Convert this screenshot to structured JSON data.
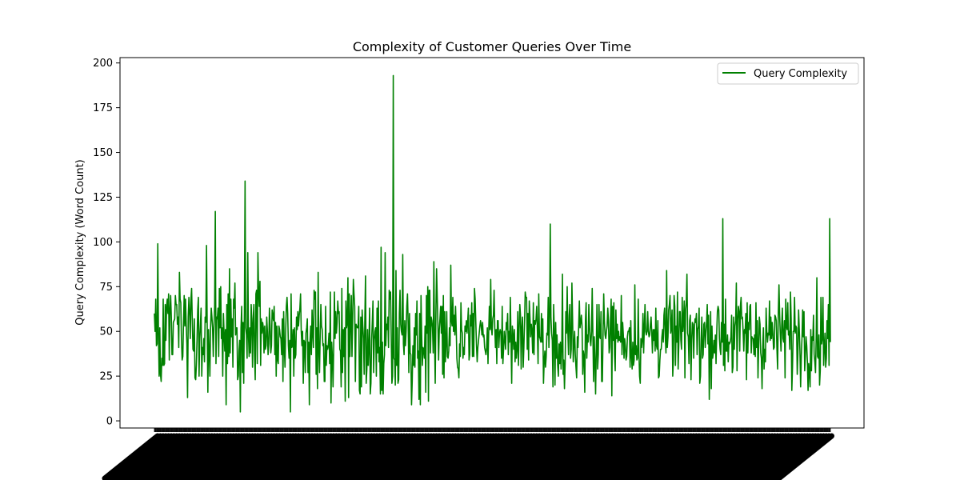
{
  "chart_data": {
    "type": "line",
    "title": "Complexity of Customer Queries Over Time",
    "xlabel": "",
    "ylabel": "Query Complexity (Word Count)",
    "ylim": [
      -4,
      203
    ],
    "yticks": [
      0,
      25,
      50,
      75,
      100,
      125,
      150,
      175,
      200
    ],
    "grid": false,
    "legend_position": "top-right",
    "series_color": "#008000",
    "series": [
      {
        "name": "Query Complexity",
        "summary": {
          "points": 1000,
          "typical_range": [
            25,
            80
          ],
          "mean": 48,
          "min": 5,
          "max": 193
        },
        "notable_points": [
          {
            "index": 134,
            "value": 134
          },
          {
            "index": 353,
            "value": 193
          },
          {
            "index": 90,
            "value": 117
          },
          {
            "index": 840,
            "value": 113
          },
          {
            "index": 998,
            "value": 113
          },
          {
            "index": 585,
            "value": 110
          },
          {
            "index": 127,
            "value": 5
          },
          {
            "index": 201,
            "value": 5
          }
        ]
      }
    ]
  }
}
